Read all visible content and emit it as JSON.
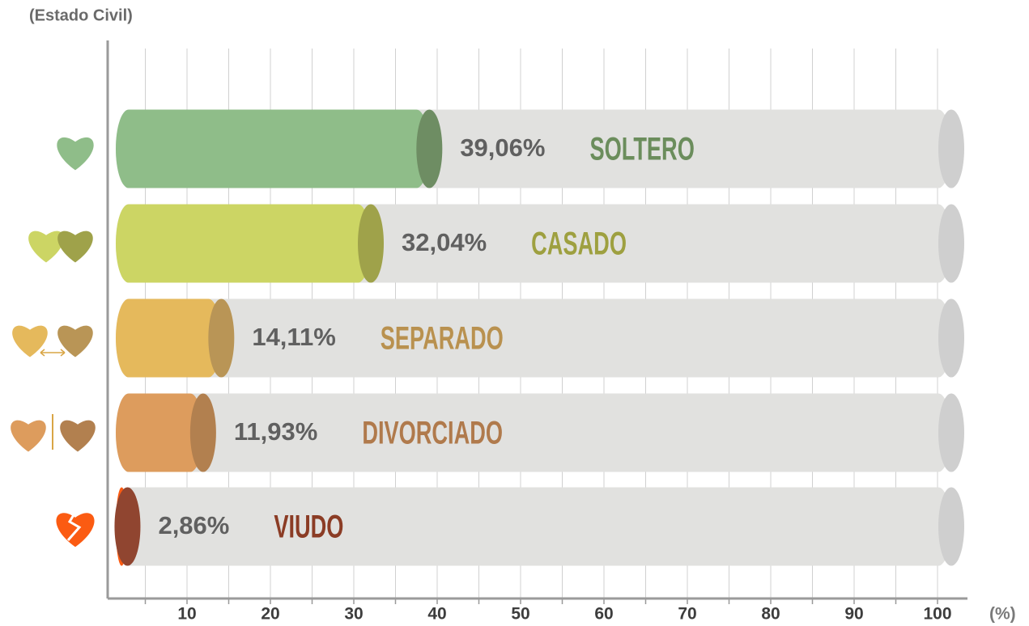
{
  "chart_data": {
    "type": "cylinder-bar",
    "title": "(Estado Civil)",
    "unit_label": "(%)",
    "categories": [
      "SOLTERO",
      "CASADO",
      "SEPARADO",
      "DIVORCIADO",
      "VIUDO"
    ],
    "values": [
      39.06,
      32.04,
      14.11,
      11.93,
      2.86
    ],
    "value_labels": [
      "39,06%",
      "32,04%",
      "14,11%",
      "11,93%",
      "2,86%"
    ],
    "colors": [
      "#8fbd89",
      "#ccd564",
      "#e5b95c",
      "#dd9c5d",
      "#fb5b12"
    ],
    "cap_colors": [
      "#6e8d63",
      "#9fa24a",
      "#b99556",
      "#b2804f",
      "#904530"
    ],
    "label_colors": [
      "#6b8d5c",
      "#9ea040",
      "#b9914f",
      "#b07a4c",
      "#8b3c25"
    ],
    "xlim": [
      0,
      102
    ],
    "xticks": [
      10,
      20,
      30,
      40,
      50,
      60,
      70,
      80,
      90,
      100
    ],
    "xminorticks": [
      5,
      15,
      25,
      35,
      45,
      55,
      65,
      75,
      85,
      95
    ],
    "grid": true
  }
}
